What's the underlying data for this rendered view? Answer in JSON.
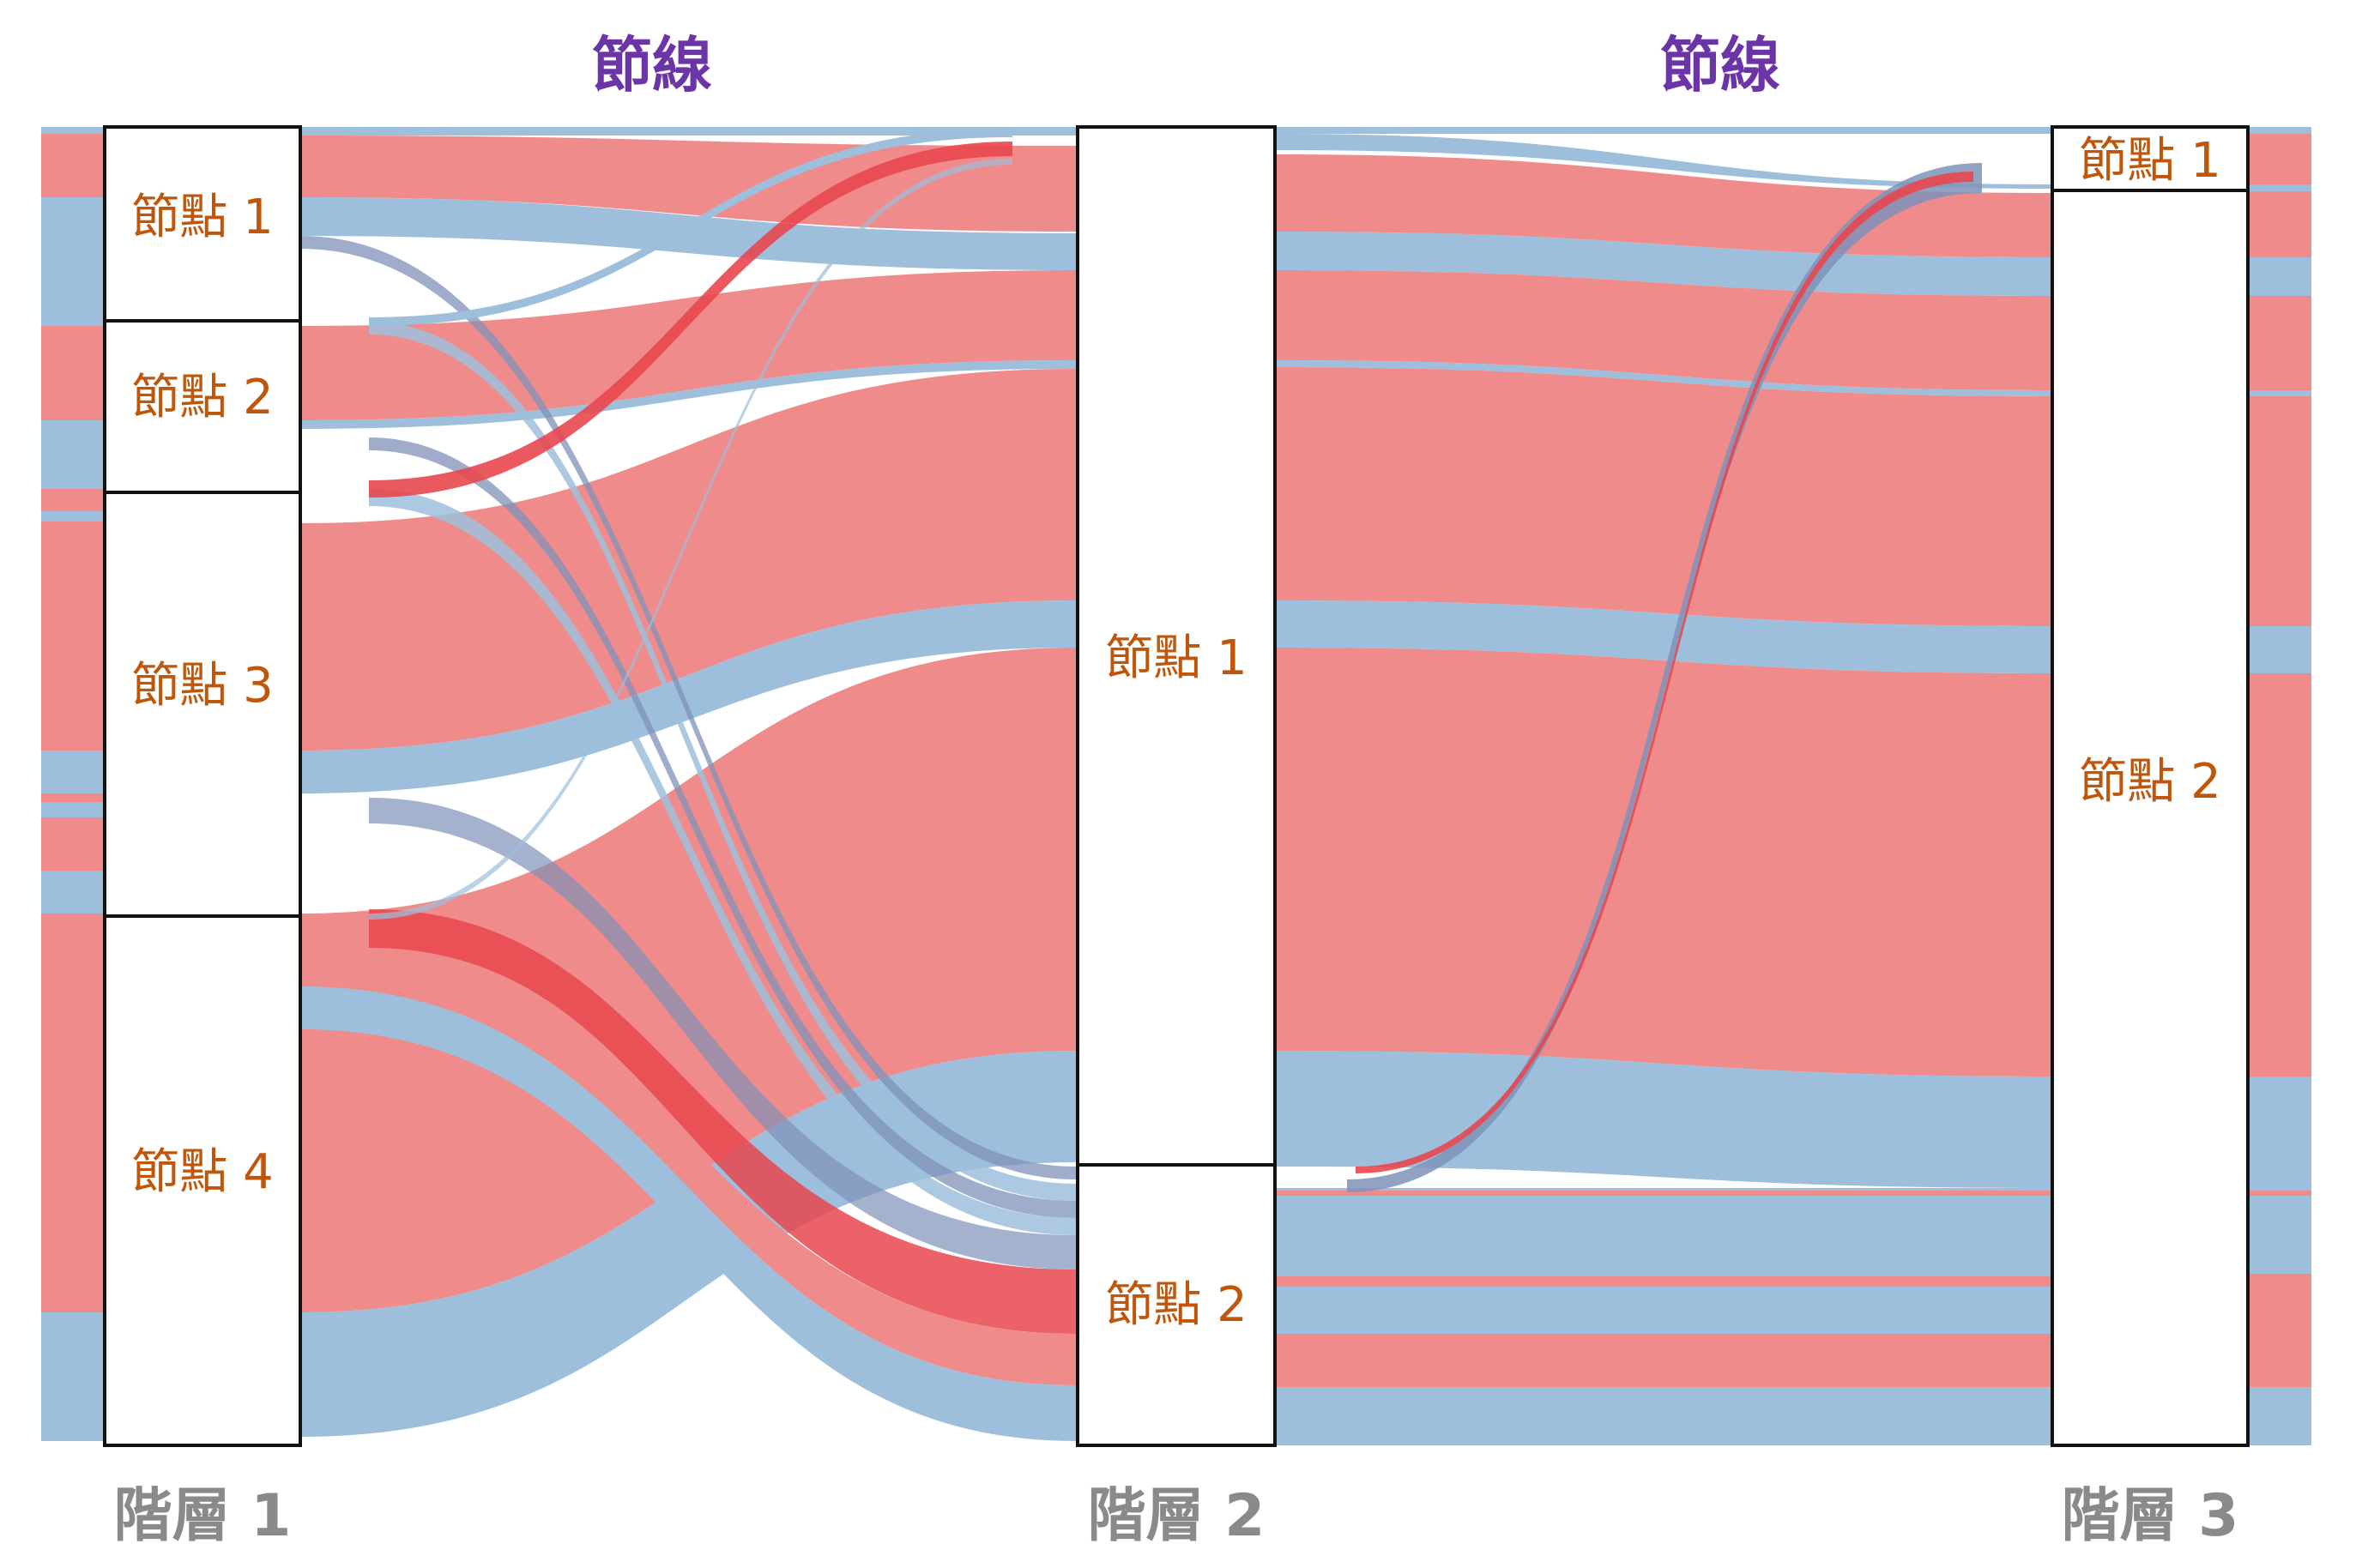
{
  "section_titles": [
    "節線",
    "節線"
  ],
  "layers": [
    {
      "label": "階層 1",
      "nodes": [
        "節點 1",
        "節點 2",
        "節點 3",
        "節點 4"
      ]
    },
    {
      "label": "階層 2",
      "nodes": [
        "節點 1",
        "節點 2"
      ]
    },
    {
      "label": "階層 3",
      "nodes": [
        "節點 1",
        "節點 2"
      ]
    }
  ],
  "colors": {
    "red_band": "#f08b8b",
    "blue_band": "#9dbfdc",
    "dark_blue_band": "#7f92b8",
    "deep_red_band": "#e8474e",
    "node_label": "#c0560a",
    "section_title": "#6b35a8",
    "layer_label": "#8a8a8a"
  }
}
